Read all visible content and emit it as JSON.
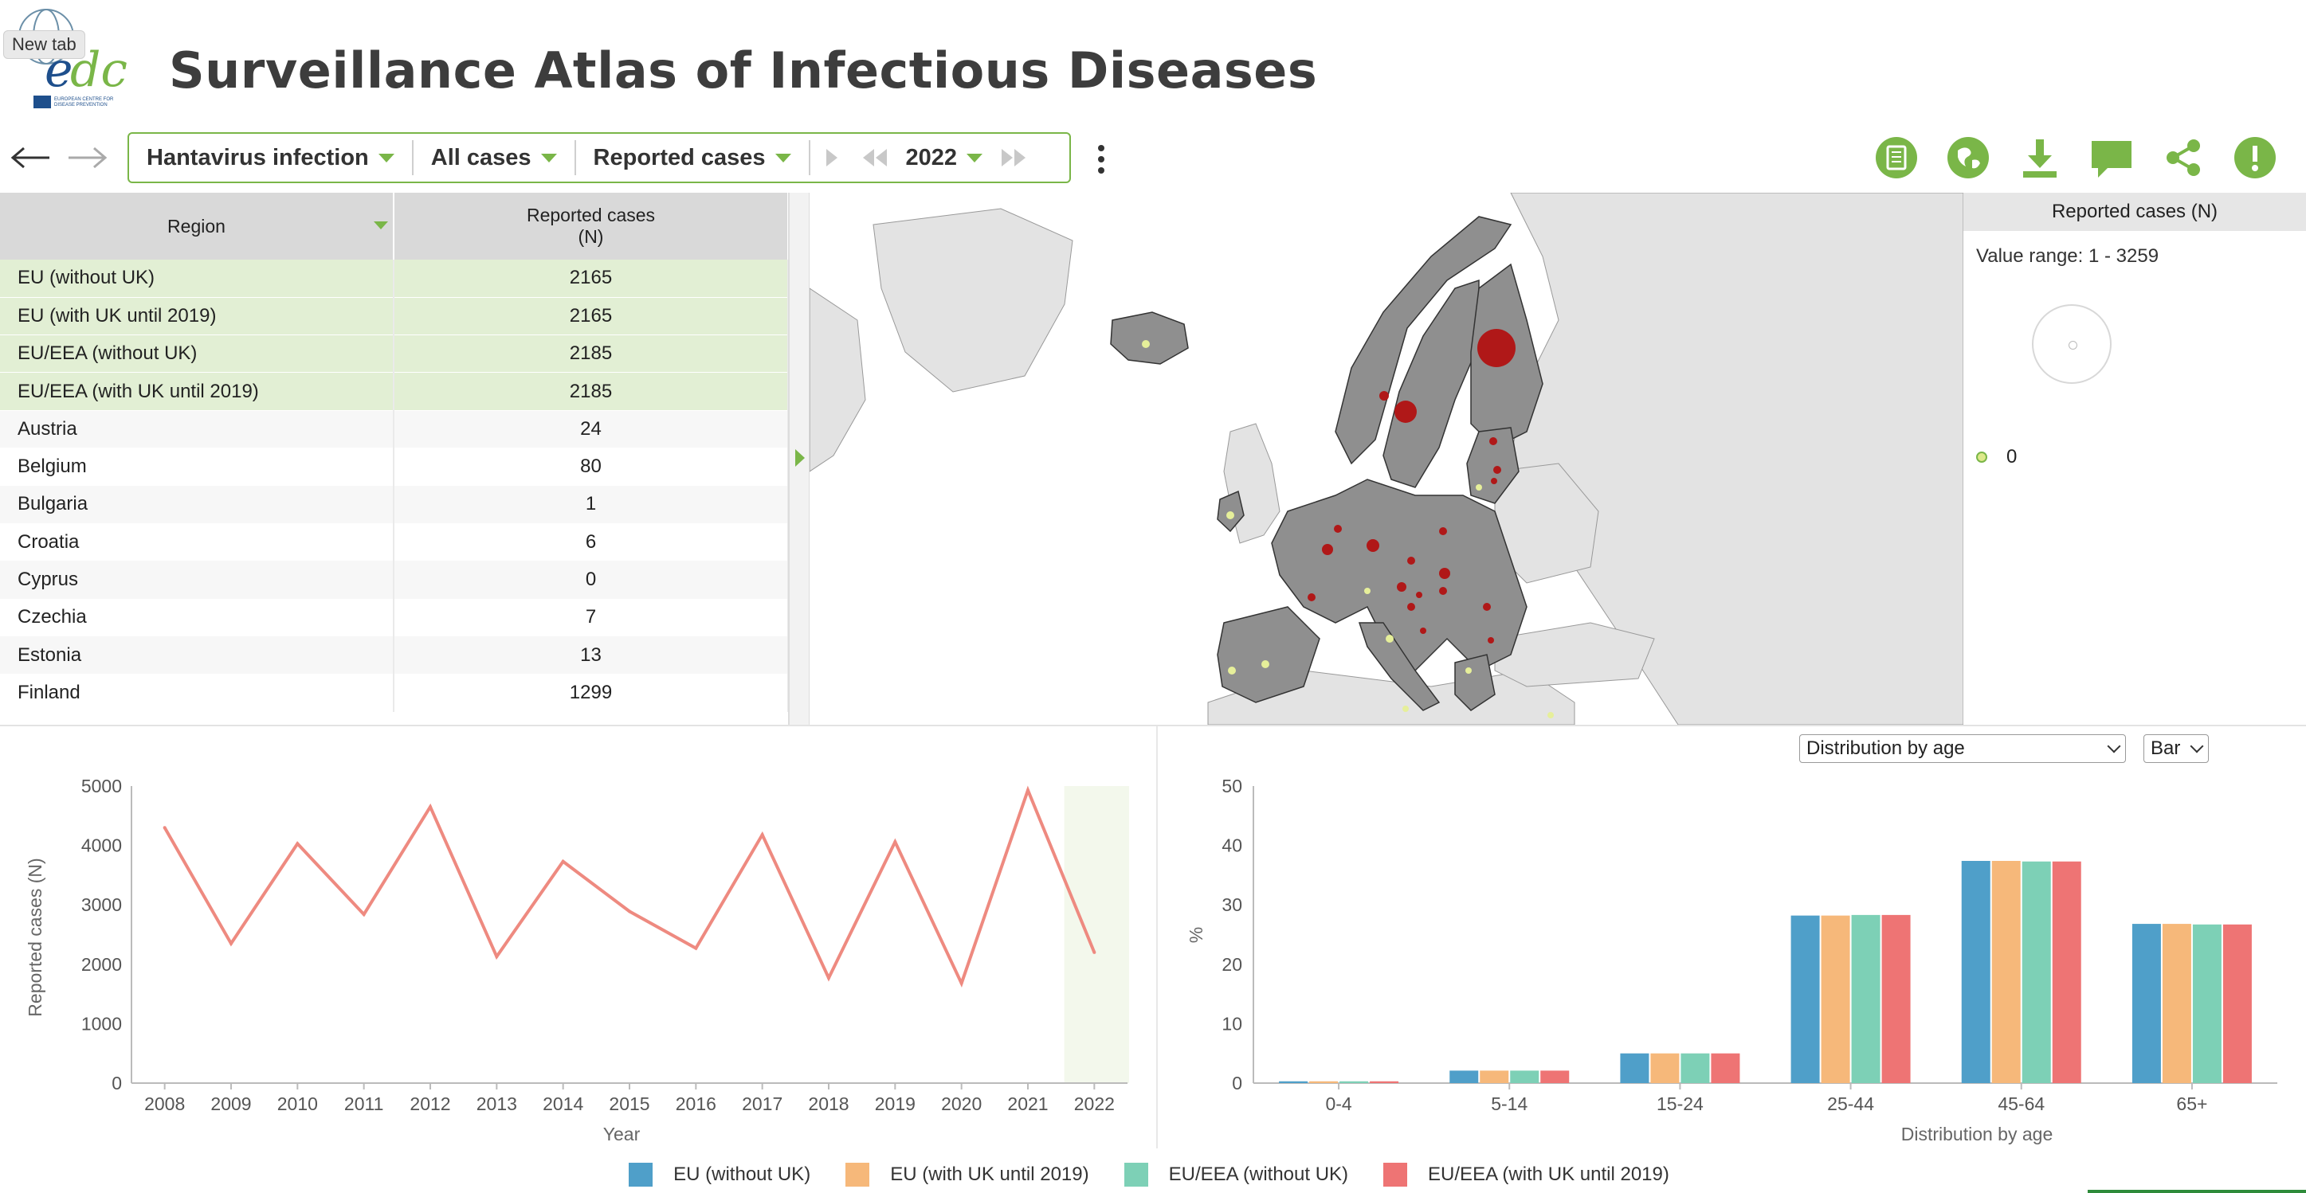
{
  "header": {
    "title": "Surveillance Atlas of Infectious Diseases",
    "tooltip": "New tab",
    "logo_text": "ecdc",
    "logo_subtext": "EUROPEAN CENTRE FOR DISEASE PREVENTION AND CONTROL"
  },
  "toolbar": {
    "disease": "Hantavirus infection",
    "population": "All cases",
    "indicator": "Reported cases",
    "year": "2022",
    "icons": [
      "book-icon",
      "globe-icon",
      "download-icon",
      "comment-icon",
      "share-icon",
      "alert-icon"
    ]
  },
  "table": {
    "col_region": "Region",
    "col_value_line1": "Reported cases",
    "col_value_line2": "(N)",
    "aggregates": [
      {
        "name": "EU (without UK)",
        "value": "2165"
      },
      {
        "name": "EU (with UK until 2019)",
        "value": "2165"
      },
      {
        "name": "EU/EEA (without UK)",
        "value": "2185"
      },
      {
        "name": "EU/EEA (with UK until 2019)",
        "value": "2185"
      }
    ],
    "countries": [
      {
        "name": "Austria",
        "value": "24"
      },
      {
        "name": "Belgium",
        "value": "80"
      },
      {
        "name": "Bulgaria",
        "value": "1"
      },
      {
        "name": "Croatia",
        "value": "6"
      },
      {
        "name": "Cyprus",
        "value": "0"
      },
      {
        "name": "Czechia",
        "value": "7"
      },
      {
        "name": "Estonia",
        "value": "13"
      },
      {
        "name": "Finland",
        "value": "1299"
      }
    ]
  },
  "map_legend": {
    "title": "Reported cases (N)",
    "range": "Value range: 1 - 3259",
    "zero_label": "0"
  },
  "controls": {
    "distribution_select": "Distribution by age",
    "chart_type_select": "Bar"
  },
  "colors": {
    "accent": "#7ab648",
    "line": "#ee8a80",
    "series": [
      "#4f9fc9",
      "#f6b87a",
      "#7dd0b6",
      "#ee7474"
    ]
  },
  "chart_data": [
    {
      "type": "line",
      "xlabel": "Year",
      "ylabel": "Reported cases (N)",
      "x": [
        "2008",
        "2009",
        "2010",
        "2011",
        "2012",
        "2013",
        "2014",
        "2015",
        "2016",
        "2017",
        "2018",
        "2019",
        "2020",
        "2021",
        "2022"
      ],
      "ylim": [
        0,
        5000
      ],
      "yticks": [
        "0",
        "1000",
        "2000",
        "3000",
        "4000",
        "5000"
      ],
      "series": [
        {
          "values": [
            4300,
            2350,
            4030,
            2840,
            4650,
            2130,
            3730,
            2890,
            2270,
            4180,
            1770,
            4060,
            1680,
            4930,
            2200
          ]
        }
      ],
      "highlight": "2022"
    },
    {
      "type": "bar",
      "xlabel": "Distribution by age",
      "ylabel": "%",
      "ylim": [
        0,
        50
      ],
      "yticks": [
        "0",
        "10",
        "20",
        "30",
        "40",
        "50"
      ],
      "categories": [
        "0-4",
        "5-14",
        "15-24",
        "25-44",
        "45-64",
        "65+"
      ],
      "series": [
        {
          "name": "EU (without UK)",
          "values": [
            0.3,
            2.1,
            5.0,
            28.2,
            37.4,
            26.8
          ]
        },
        {
          "name": "EU (with UK until 2019)",
          "values": [
            0.3,
            2.1,
            5.0,
            28.2,
            37.4,
            26.8
          ]
        },
        {
          "name": "EU/EEA (without UK)",
          "values": [
            0.3,
            2.1,
            5.0,
            28.3,
            37.3,
            26.7
          ]
        },
        {
          "name": "EU/EEA (with UK until 2019)",
          "values": [
            0.3,
            2.1,
            5.0,
            28.3,
            37.3,
            26.7
          ]
        }
      ]
    }
  ]
}
